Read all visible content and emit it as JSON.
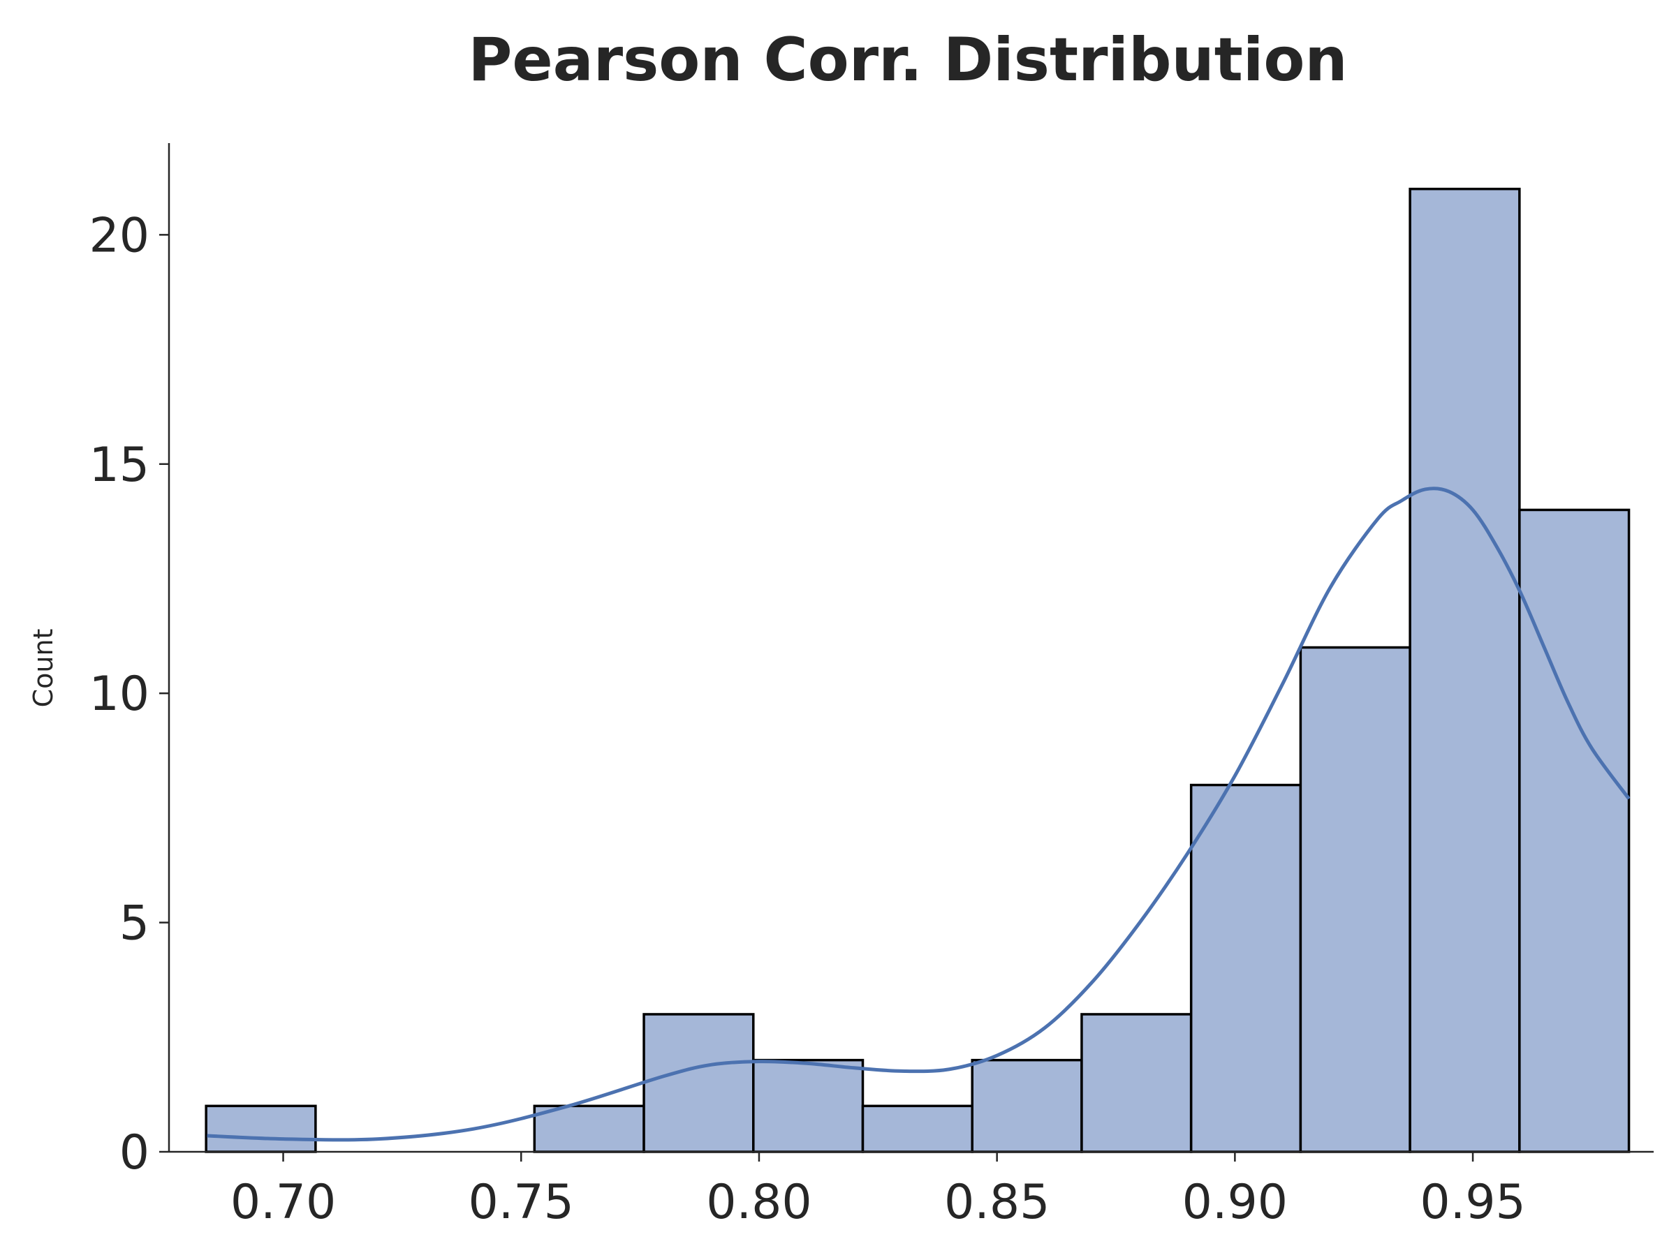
{
  "chart_data": {
    "type": "bar",
    "title": "Pearson Corr. Distribution",
    "xlabel": "",
    "ylabel": "Count",
    "xlim": [
      0.676,
      0.988
    ],
    "ylim": [
      0,
      22
    ],
    "x_ticks": [
      "0.70",
      "0.75",
      "0.80",
      "0.85",
      "0.90",
      "0.95"
    ],
    "x_tick_values": [
      0.7,
      0.75,
      0.8,
      0.85,
      0.9,
      0.95
    ],
    "y_ticks": [
      "0",
      "5",
      "10",
      "15",
      "20"
    ],
    "y_tick_values": [
      0,
      5,
      10,
      15,
      20
    ],
    "bins": [
      {
        "start": 0.6838,
        "end": 0.7068,
        "count": 1
      },
      {
        "start": 0.7068,
        "end": 0.7298,
        "count": 0
      },
      {
        "start": 0.7298,
        "end": 0.7528,
        "count": 0
      },
      {
        "start": 0.7528,
        "end": 0.7758,
        "count": 1
      },
      {
        "start": 0.7758,
        "end": 0.7988,
        "count": 3
      },
      {
        "start": 0.7988,
        "end": 0.8218,
        "count": 2
      },
      {
        "start": 0.8218,
        "end": 0.8448,
        "count": 1
      },
      {
        "start": 0.8448,
        "end": 0.8678,
        "count": 2
      },
      {
        "start": 0.8678,
        "end": 0.8908,
        "count": 3
      },
      {
        "start": 0.8908,
        "end": 0.9138,
        "count": 8
      },
      {
        "start": 0.9138,
        "end": 0.9368,
        "count": 11
      },
      {
        "start": 0.9368,
        "end": 0.9598,
        "count": 21
      },
      {
        "start": 0.9598,
        "end": 0.9828,
        "count": 14
      }
    ],
    "kde": {
      "x": [
        0.684,
        0.7,
        0.72,
        0.74,
        0.76,
        0.78,
        0.79,
        0.8,
        0.81,
        0.82,
        0.83,
        0.84,
        0.85,
        0.86,
        0.87,
        0.88,
        0.89,
        0.9,
        0.91,
        0.92,
        0.93,
        0.935,
        0.94,
        0.945,
        0.95,
        0.955,
        0.96,
        0.965,
        0.97,
        0.975,
        0.9828
      ],
      "y": [
        0.35,
        0.28,
        0.28,
        0.5,
        1.0,
        1.65,
        1.9,
        1.97,
        1.93,
        1.83,
        1.76,
        1.8,
        2.1,
        2.7,
        3.7,
        5.0,
        6.5,
        8.2,
        10.2,
        12.3,
        13.8,
        14.2,
        14.45,
        14.4,
        14.0,
        13.2,
        12.2,
        11.0,
        9.8,
        8.8,
        7.7
      ]
    },
    "colors": {
      "bar_fill": "#a5b7d8",
      "bar_edge": "#000000",
      "kde_line": "#4c72b0",
      "axis": "#262626"
    },
    "grid": false,
    "legend": "none"
  }
}
